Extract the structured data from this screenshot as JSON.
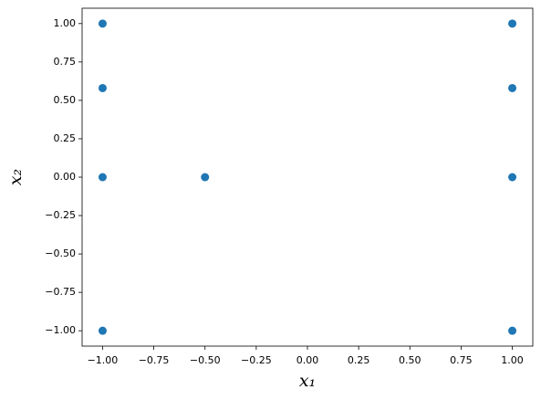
{
  "chart_data": {
    "type": "scatter",
    "x_label": "x₁",
    "y_label": "x₂",
    "x": [
      -1,
      -1,
      -1,
      -1,
      -0.5,
      1,
      1,
      1,
      1
    ],
    "values": [
      1,
      0.58,
      0,
      -1,
      0,
      1,
      0.58,
      0,
      -1
    ],
    "color": "#1f77b4",
    "xlim": [
      -1.1,
      1.1
    ],
    "ylim": [
      -1.1,
      1.1
    ],
    "xticks": [
      {
        "value": -1,
        "label": "−1.00"
      },
      {
        "value": -0.75,
        "label": "−0.75"
      },
      {
        "value": -0.5,
        "label": "−0.50"
      },
      {
        "value": -0.25,
        "label": "−0.25"
      },
      {
        "value": 0,
        "label": "0.00"
      },
      {
        "value": 0.25,
        "label": "0.25"
      },
      {
        "value": 0.5,
        "label": "0.50"
      },
      {
        "value": 0.75,
        "label": "0.75"
      },
      {
        "value": 1,
        "label": "1.00"
      }
    ],
    "yticks": [
      {
        "value": -1,
        "label": "−1.00"
      },
      {
        "value": -0.75,
        "label": "−0.75"
      },
      {
        "value": -0.5,
        "label": "−0.50"
      },
      {
        "value": -0.25,
        "label": "−0.25"
      },
      {
        "value": 0,
        "label": "0.00"
      },
      {
        "value": 0.25,
        "label": "0.25"
      },
      {
        "value": 0.5,
        "label": "0.50"
      },
      {
        "value": 0.75,
        "label": "0.75"
      },
      {
        "value": 1,
        "label": "1.00"
      }
    ],
    "grid": false
  }
}
